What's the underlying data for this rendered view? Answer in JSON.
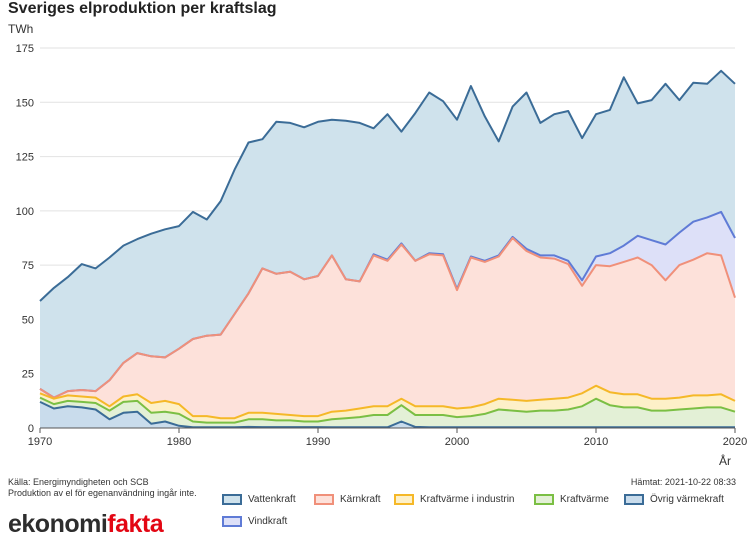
{
  "page": {
    "title": "Sveriges elproduktion per kraftslag",
    "y_unit": "TWh",
    "x_unit": "År",
    "source_line1": "Källa: Energimyndigheten och SCB",
    "source_line2": "Produktion av el för egenanvändning ingår inte.",
    "fetched": "Hämtat: 2021-10-22 08:33",
    "logo_part1": "ekonomi",
    "logo_part2": "fakta"
  },
  "chart_data": {
    "type": "area",
    "stacked": true,
    "title": "Sveriges elproduktion per kraftslag",
    "ylabel": "TWh",
    "xlabel": "År",
    "ylim": [
      0,
      175
    ],
    "xlim": [
      1970,
      2020
    ],
    "yticks": [
      0,
      25,
      50,
      75,
      100,
      125,
      150,
      175
    ],
    "xticks": [
      1970,
      1980,
      1990,
      2000,
      2010,
      2020
    ],
    "grid": "horizontal",
    "legend_position": "bottom",
    "x": [
      1970,
      1971,
      1972,
      1973,
      1974,
      1975,
      1976,
      1977,
      1978,
      1979,
      1980,
      1981,
      1982,
      1983,
      1984,
      1985,
      1986,
      1987,
      1988,
      1989,
      1990,
      1991,
      1992,
      1993,
      1994,
      1995,
      1996,
      1997,
      1998,
      1999,
      2000,
      2001,
      2002,
      2003,
      2004,
      2005,
      2006,
      2007,
      2008,
      2009,
      2010,
      2011,
      2012,
      2013,
      2014,
      2015,
      2016,
      2017,
      2018,
      2019,
      2020
    ],
    "series": [
      {
        "name": "Övrig värmekraft",
        "fill": "#c9dcec",
        "stroke": "#3b6c97",
        "cumulative": [
          12,
          9,
          10,
          9.5,
          8.5,
          4,
          7,
          7.5,
          2,
          3,
          1,
          0.3,
          0.3,
          0.3,
          0.3,
          0.5,
          0.4,
          0.4,
          0.4,
          0.4,
          0.4,
          0.3,
          0.3,
          0.3,
          0.3,
          0.3,
          3,
          0.5,
          0.3,
          0.3,
          0.3,
          0.3,
          0.3,
          0.3,
          0.3,
          0.3,
          0.3,
          0.3,
          0.3,
          0.3,
          0.3,
          0.3,
          0.3,
          0.3,
          0.3,
          0.3,
          0.3,
          0.3,
          0.3,
          0.3,
          0.3
        ]
      },
      {
        "name": "Kraftvärme",
        "fill": "#e3f0d6",
        "stroke": "#7bbf44",
        "cumulative": [
          14,
          11,
          12.5,
          12,
          11.5,
          8,
          12,
          12.5,
          7,
          7.5,
          6.5,
          3,
          2.5,
          2.5,
          2.5,
          4,
          4,
          3.5,
          3.5,
          3,
          3,
          4,
          4.5,
          5,
          6,
          6,
          10.5,
          6,
          6,
          6,
          5,
          5.5,
          6.5,
          8.5,
          8,
          7.5,
          8,
          8,
          8.5,
          10,
          13.5,
          10.5,
          9.5,
          9.5,
          8,
          8,
          8.5,
          9,
          9.5,
          9.5,
          7.5
        ]
      },
      {
        "name": "Kraftvärme i industrin",
        "fill": "#fdf0c8",
        "stroke": "#f5b828",
        "cumulative": [
          16,
          13.5,
          15,
          14.5,
          14,
          10,
          14.5,
          15.5,
          11.5,
          12.5,
          11,
          5.5,
          5.5,
          4.5,
          4.5,
          7,
          7,
          6.5,
          6,
          5.5,
          5.5,
          7.5,
          8,
          9,
          10,
          10,
          13.5,
          10,
          10,
          10,
          9,
          9.5,
          11,
          13.5,
          13,
          12.5,
          13,
          13.5,
          14,
          16,
          19.5,
          16.5,
          15.5,
          15.5,
          13.5,
          13.5,
          14,
          15,
          15,
          15.5,
          12.5
        ]
      },
      {
        "name": "Kärnkraft",
        "fill": "#fde1da",
        "stroke": "#f0907a",
        "cumulative": [
          18,
          14,
          17,
          17.5,
          17,
          22,
          30,
          34.5,
          33,
          32.5,
          36.5,
          41,
          42.5,
          43,
          52.5,
          62,
          73.5,
          71,
          72,
          68.5,
          70,
          79.5,
          68.5,
          67.5,
          79.5,
          77,
          84.5,
          77,
          80,
          79.5,
          63.5,
          78.5,
          76.5,
          79,
          87.5,
          81.5,
          78.5,
          78,
          75.5,
          65.5,
          75,
          74.5,
          76.5,
          78.5,
          75,
          68,
          75,
          77.5,
          80.5,
          79.5,
          60
        ]
      },
      {
        "name": "Vindkraft",
        "fill": "#dde0f8",
        "stroke": "#5f7bd6",
        "cumulative": [
          18,
          14,
          17,
          17.5,
          17,
          22,
          30,
          34.5,
          33,
          32.5,
          36.5,
          41,
          42.5,
          43,
          52.5,
          62,
          73.5,
          71,
          72,
          68.5,
          70,
          79.5,
          68.5,
          67.5,
          80,
          77.5,
          85,
          77,
          80.5,
          80,
          64,
          79,
          77,
          79.5,
          88,
          82.5,
          79.5,
          79.5,
          77,
          68,
          79,
          80.5,
          84,
          88.5,
          86.5,
          84.5,
          90,
          95,
          97,
          99.5,
          87.5
        ]
      },
      {
        "name": "Vattenkraft",
        "fill": "#cfe2ec",
        "stroke": "#3b6c97",
        "cumulative": [
          58.5,
          64.5,
          69.5,
          75.5,
          73.5,
          78.5,
          84,
          87,
          89.5,
          91.5,
          93,
          99.5,
          96,
          104.5,
          119,
          131.5,
          133,
          141,
          140.5,
          138.5,
          141,
          142,
          141.5,
          140.5,
          138,
          144.5,
          136.5,
          145,
          154.5,
          150.5,
          142,
          157.5,
          143.5,
          132,
          148,
          154.5,
          140.5,
          144.5,
          146,
          133.5,
          144.5,
          146.5,
          161.5,
          149.5,
          151,
          158.5,
          151,
          159,
          158.5,
          164.5,
          158.5
        ]
      }
    ]
  },
  "legend": [
    {
      "label": "Vattenkraft",
      "fill": "#cfe2ec",
      "stroke": "#3b6c97"
    },
    {
      "label": "Kärnkraft",
      "fill": "#fde1da",
      "stroke": "#f0907a"
    },
    {
      "label": "Kraftvärme i industrin",
      "fill": "#fdf0c8",
      "stroke": "#f5b828"
    },
    {
      "label": "Kraftvärme",
      "fill": "#e3f0d6",
      "stroke": "#7bbf44"
    },
    {
      "label": "Övrig värmekraft",
      "fill": "#c9dcec",
      "stroke": "#3b6c97"
    },
    {
      "label": "Vindkraft",
      "fill": "#dde0f8",
      "stroke": "#5f7bd6"
    }
  ]
}
